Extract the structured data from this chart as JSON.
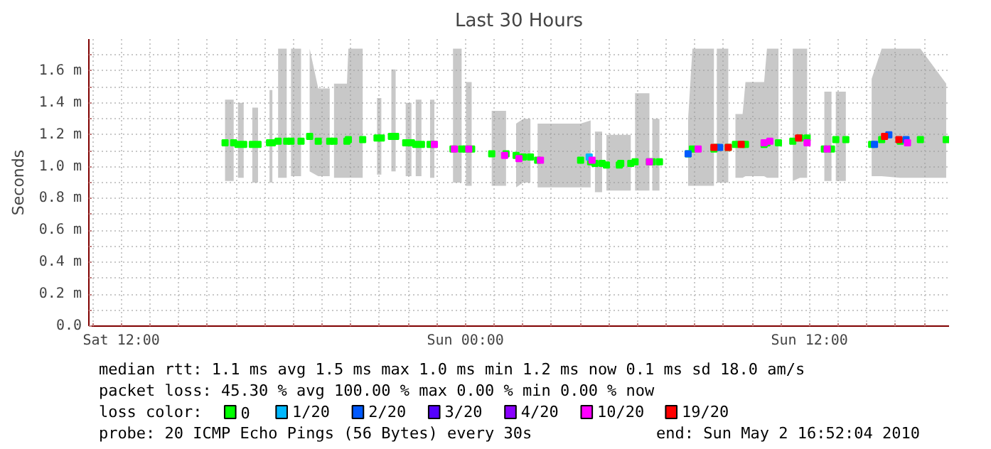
{
  "chart_data": {
    "type": "scatter",
    "title": "Last 30 Hours",
    "ylabel": "Seconds",
    "legend_title": "loss color:",
    "legend": "bottom",
    "grid": true,
    "marker": "square",
    "xlim": [
      "2010-05-01T10:52",
      "2010-05-02T16:52"
    ],
    "xticks": [
      {
        "value": "2010-05-01T11:00",
        "label": null
      },
      {
        "value": "2010-05-01T12:00",
        "label": "Sat 12:00"
      },
      {
        "value": "2010-05-01T13:00",
        "label": null
      },
      {
        "value": "2010-05-01T14:00",
        "label": null
      },
      {
        "value": "2010-05-01T15:00",
        "label": null
      },
      {
        "value": "2010-05-01T16:00",
        "label": null
      },
      {
        "value": "2010-05-01T17:00",
        "label": null
      },
      {
        "value": "2010-05-01T18:00",
        "label": null
      },
      {
        "value": "2010-05-01T19:00",
        "label": null
      },
      {
        "value": "2010-05-01T20:00",
        "label": null
      },
      {
        "value": "2010-05-01T21:00",
        "label": null
      },
      {
        "value": "2010-05-01T22:00",
        "label": null
      },
      {
        "value": "2010-05-01T23:00",
        "label": null
      },
      {
        "value": "2010-05-02T00:00",
        "label": "Sun 00:00"
      },
      {
        "value": "2010-05-02T01:00",
        "label": null
      },
      {
        "value": "2010-05-02T02:00",
        "label": null
      },
      {
        "value": "2010-05-02T03:00",
        "label": null
      },
      {
        "value": "2010-05-02T04:00",
        "label": null
      },
      {
        "value": "2010-05-02T05:00",
        "label": null
      },
      {
        "value": "2010-05-02T06:00",
        "label": null
      },
      {
        "value": "2010-05-02T07:00",
        "label": null
      },
      {
        "value": "2010-05-02T08:00",
        "label": null
      },
      {
        "value": "2010-05-02T09:00",
        "label": null
      },
      {
        "value": "2010-05-02T10:00",
        "label": null
      },
      {
        "value": "2010-05-02T11:00",
        "label": null
      },
      {
        "value": "2010-05-02T12:00",
        "label": "Sun 12:00"
      },
      {
        "value": "2010-05-02T13:00",
        "label": null
      },
      {
        "value": "2010-05-02T14:00",
        "label": null
      },
      {
        "value": "2010-05-02T15:00",
        "label": null
      },
      {
        "value": "2010-05-02T16:00",
        "label": null
      }
    ],
    "ylim": [
      0,
      1.8
    ],
    "yticks": [
      {
        "value": 0,
        "label": "0.0"
      },
      {
        "value": 0.1,
        "label": null
      },
      {
        "value": 0.2,
        "label": "0.2 m"
      },
      {
        "value": 0.3,
        "label": null
      },
      {
        "value": 0.4,
        "label": "0.4 m"
      },
      {
        "value": 0.5,
        "label": null
      },
      {
        "value": 0.6,
        "label": "0.6 m"
      },
      {
        "value": 0.7,
        "label": null
      },
      {
        "value": 0.8,
        "label": "0.8 m"
      },
      {
        "value": 0.9,
        "label": null
      },
      {
        "value": 1.0,
        "label": "1.0 m"
      },
      {
        "value": 1.1,
        "label": null
      },
      {
        "value": 1.2,
        "label": "1.2 m"
      },
      {
        "value": 1.3,
        "label": null
      },
      {
        "value": 1.4,
        "label": "1.4 m"
      },
      {
        "value": 1.5,
        "label": null
      },
      {
        "value": 1.6,
        "label": "1.6 m"
      },
      {
        "value": 1.7,
        "label": null
      }
    ],
    "series": [
      {
        "name": "0",
        "color": "#00ff00",
        "x": [
          "2010-05-01T15:37",
          "2010-05-01T15:55",
          "2010-05-01T16:00",
          "2010-05-01T16:04",
          "2010-05-01T16:16",
          "2010-05-01T16:25",
          "2010-05-01T16:34",
          "2010-05-01T16:46",
          "2010-05-01T16:58",
          "2010-05-01T17:10",
          "2010-05-01T17:16",
          "2010-05-01T17:22",
          "2010-05-01T17:28",
          "2010-05-01T17:46",
          "2010-05-01T17:50",
          "2010-05-01T17:55",
          "2010-05-01T18:16",
          "2010-05-01T18:25",
          "2010-05-01T18:34",
          "2010-05-01T18:52",
          "2010-05-01T19:16",
          "2010-05-01T19:20",
          "2010-05-01T19:25",
          "2010-05-01T19:52",
          "2010-05-01T19:55",
          "2010-05-01T20:25",
          "2010-05-01T20:40",
          "2010-05-01T20:55",
          "2010-05-01T21:04",
          "2010-05-01T21:15",
          "2010-05-01T21:25",
          "2010-05-01T21:34",
          "2010-05-01T21:45",
          "2010-05-01T21:55",
          "2010-05-01T22:07",
          "2010-05-01T22:10",
          "2010-05-01T22:16",
          "2010-05-01T22:28",
          "2010-05-01T22:35",
          "2010-05-01T22:46",
          "2010-05-01T22:55",
          "2010-05-01T23:15",
          "2010-05-01T23:34",
          "2010-05-01T23:52",
          "2010-05-01T23:56",
          "2010-05-02T00:01",
          "2010-05-02T00:13",
          "2010-05-02T00:30",
          "2010-05-02T00:55",
          "2010-05-02T01:25",
          "2010-05-02T01:35",
          "2010-05-02T01:46",
          "2010-05-02T02:01",
          "2010-05-02T02:16",
          "2010-05-02T02:25",
          "2010-05-02T02:31",
          "2010-05-02T04:01",
          "2010-05-02T04:22",
          "2010-05-02T04:27",
          "2010-05-02T04:31",
          "2010-05-02T04:46",
          "2010-05-02T04:50",
          "2010-05-02T04:55",
          "2010-05-02T05:22",
          "2010-05-02T05:25",
          "2010-05-02T05:46",
          "2010-05-02T05:50",
          "2010-05-02T05:55",
          "2010-05-02T06:25",
          "2010-05-02T06:28",
          "2010-05-02T06:31",
          "2010-05-02T06:46",
          "2010-05-02T07:15",
          "2010-05-02T07:46",
          "2010-05-02T07:55",
          "2010-05-02T08:40",
          "2010-05-02T08:43",
          "2010-05-02T08:46",
          "2010-05-02T09:10",
          "2010-05-02T09:17",
          "2010-05-02T09:25",
          "2010-05-02T09:40",
          "2010-05-02T09:46",
          "2010-05-02T10:25",
          "2010-05-02T10:31",
          "2010-05-02T10:55",
          "2010-05-02T11:10",
          "2010-05-02T11:25",
          "2010-05-02T11:40",
          "2010-05-02T11:55",
          "2010-05-02T12:15",
          "2010-05-02T12:31",
          "2010-05-02T12:46",
          "2010-05-02T12:50",
          "2010-05-02T12:55",
          "2010-05-02T13:16",
          "2010-05-02T13:45",
          "2010-05-02T14:10",
          "2010-05-02T14:31",
          "2010-05-02T15:10",
          "2010-05-02T15:52",
          "2010-05-02T16:46"
        ],
        "values": [
          1.15,
          1.15,
          null,
          1.14,
          1.14,
          null,
          1.14,
          1.14,
          null,
          1.15,
          1.15,
          null,
          1.16,
          1.16,
          null,
          1.16,
          1.16,
          null,
          1.19,
          1.16,
          1.16,
          null,
          1.16,
          1.16,
          1.17,
          1.17,
          null,
          1.18,
          1.18,
          null,
          1.19,
          1.19,
          null,
          1.15,
          1.15,
          null,
          1.14,
          1.14,
          null,
          1.14,
          1.14,
          null,
          1.11,
          1.11,
          null,
          1.11,
          1.11,
          null,
          1.08,
          1.08,
          null,
          1.07,
          1.06,
          1.06,
          null,
          1.04,
          1.04,
          1.03,
          null,
          1.02,
          1.02,
          null,
          1.01,
          1.01,
          1.02,
          1.02,
          null,
          1.03,
          1.03,
          null,
          1.03,
          1.03,
          null,
          1.08,
          1.11,
          1.11,
          null,
          1.12,
          1.12,
          null,
          1.14,
          1.14,
          1.14,
          1.14,
          1.15,
          1.15,
          null,
          1.16,
          1.18,
          1.18,
          null,
          1.11,
          1.11,
          null,
          1.17,
          1.17,
          null,
          1.14,
          1.17,
          1.16,
          1.17,
          1.17
        ],
        "lower": [
          0.91,
          0.91,
          null,
          0.93,
          0.93,
          null,
          0.9,
          0.9,
          null,
          0.9,
          0.9,
          null,
          0.93,
          0.93,
          null,
          0.94,
          0.94,
          null,
          0.97,
          0.94,
          0.94,
          null,
          0.93,
          0.93,
          0.93,
          0.93,
          null,
          0.95,
          0.95,
          null,
          0.97,
          0.97,
          null,
          0.94,
          0.94,
          null,
          0.94,
          0.94,
          null,
          0.93,
          0.93,
          null,
          0.9,
          0.9,
          null,
          0.88,
          0.88,
          null,
          0.88,
          0.88,
          null,
          0.87,
          0.9,
          0.9,
          null,
          0.87,
          0.87,
          0.87,
          null,
          0.84,
          0.84,
          null,
          0.85,
          0.85,
          0.85,
          0.85,
          null,
          0.85,
          0.85,
          null,
          0.85,
          0.85,
          null,
          0.88,
          0.88,
          0.88,
          null,
          0.9,
          0.9,
          null,
          0.93,
          0.93,
          0.94,
          0.94,
          0.93,
          0.93,
          null,
          0.91,
          0.93,
          0.93,
          null,
          0.91,
          0.91,
          null,
          0.91,
          0.91,
          null,
          0.94,
          0.94,
          0.93,
          0.93,
          0.93
        ],
        "upper": [
          1.42,
          1.42,
          null,
          1.4,
          1.4,
          null,
          1.37,
          1.37,
          null,
          1.48,
          1.48,
          null,
          1.74,
          1.74,
          null,
          1.74,
          1.74,
          null,
          1.74,
          1.49,
          1.49,
          null,
          1.52,
          1.52,
          1.74,
          1.74,
          null,
          1.43,
          1.43,
          null,
          1.61,
          1.61,
          null,
          1.4,
          1.4,
          null,
          1.42,
          1.42,
          null,
          1.42,
          1.42,
          null,
          1.74,
          1.74,
          null,
          1.53,
          1.53,
          null,
          1.35,
          1.35,
          null,
          1.27,
          1.3,
          1.3,
          null,
          1.27,
          1.27,
          1.29,
          null,
          1.22,
          1.22,
          null,
          1.2,
          1.2,
          1.2,
          1.2,
          null,
          1.46,
          1.46,
          null,
          1.3,
          1.3,
          null,
          1.3,
          1.74,
          1.74,
          null,
          1.74,
          1.74,
          null,
          1.33,
          1.33,
          1.53,
          1.53,
          1.74,
          1.74,
          null,
          1.74,
          1.74,
          1.74,
          null,
          1.47,
          1.47,
          null,
          1.47,
          1.47,
          null,
          1.55,
          1.74,
          1.74,
          1.74,
          1.52
        ]
      },
      {
        "name": "1/20",
        "type": "scatter",
        "color": "#00b8ff",
        "x": [
          "2010-05-02T04:19"
        ],
        "values": [
          1.06
        ]
      },
      {
        "name": "2/20",
        "type": "scatter",
        "color": "#0059ff",
        "x": [
          "2010-05-02T07:46",
          "2010-05-02T08:52",
          "2010-05-02T14:16",
          "2010-05-02T14:46",
          "2010-05-02T15:22"
        ],
        "values": [
          1.08,
          1.12,
          1.14,
          1.2,
          1.17
        ]
      },
      {
        "name": "3/20",
        "type": "scatter",
        "color": "#5500ff"
      },
      {
        "name": "4/20",
        "type": "scatter",
        "color": "#8a00ff"
      },
      {
        "name": "10/20",
        "type": "scatter",
        "color": "#ff00ff",
        "x": [
          "2010-05-01T22:55",
          "2010-05-01T23:37",
          "2010-05-02T00:07",
          "2010-05-02T01:22",
          "2010-05-02T01:52",
          "2010-05-02T02:37",
          "2010-05-02T04:25",
          "2010-05-02T06:25",
          "2010-05-02T08:07",
          "2010-05-02T10:25",
          "2010-05-02T10:37",
          "2010-05-02T11:55",
          "2010-05-02T12:37",
          "2010-05-02T15:25"
        ],
        "values": [
          1.14,
          1.11,
          1.11,
          1.07,
          1.05,
          1.04,
          1.04,
          1.03,
          1.11,
          1.15,
          1.16,
          1.15,
          1.11,
          1.15
        ]
      },
      {
        "name": "19/20",
        "type": "scatter",
        "color": "#ff0000",
        "x": [
          "2010-05-02T08:40",
          "2010-05-02T09:10",
          "2010-05-02T09:37",
          "2010-05-02T11:37",
          "2010-05-02T14:37",
          "2010-05-02T15:07"
        ],
        "values": [
          1.12,
          1.12,
          1.14,
          1.18,
          1.19,
          1.17
        ]
      }
    ],
    "annotations": [
      "median rtt:  1.1 ms avg  1.5 ms max  1.0 ms min  1.2 ms now  0.1 ms sd  18.0   am/s",
      "packet loss: 45.30 % avg  100.00 % max  0.00 % min  0.00 % now",
      "probe:        20 ICMP Echo Pings (56 Bytes) every 30s",
      "end: Sun May  2 16:52:04 2010"
    ]
  }
}
